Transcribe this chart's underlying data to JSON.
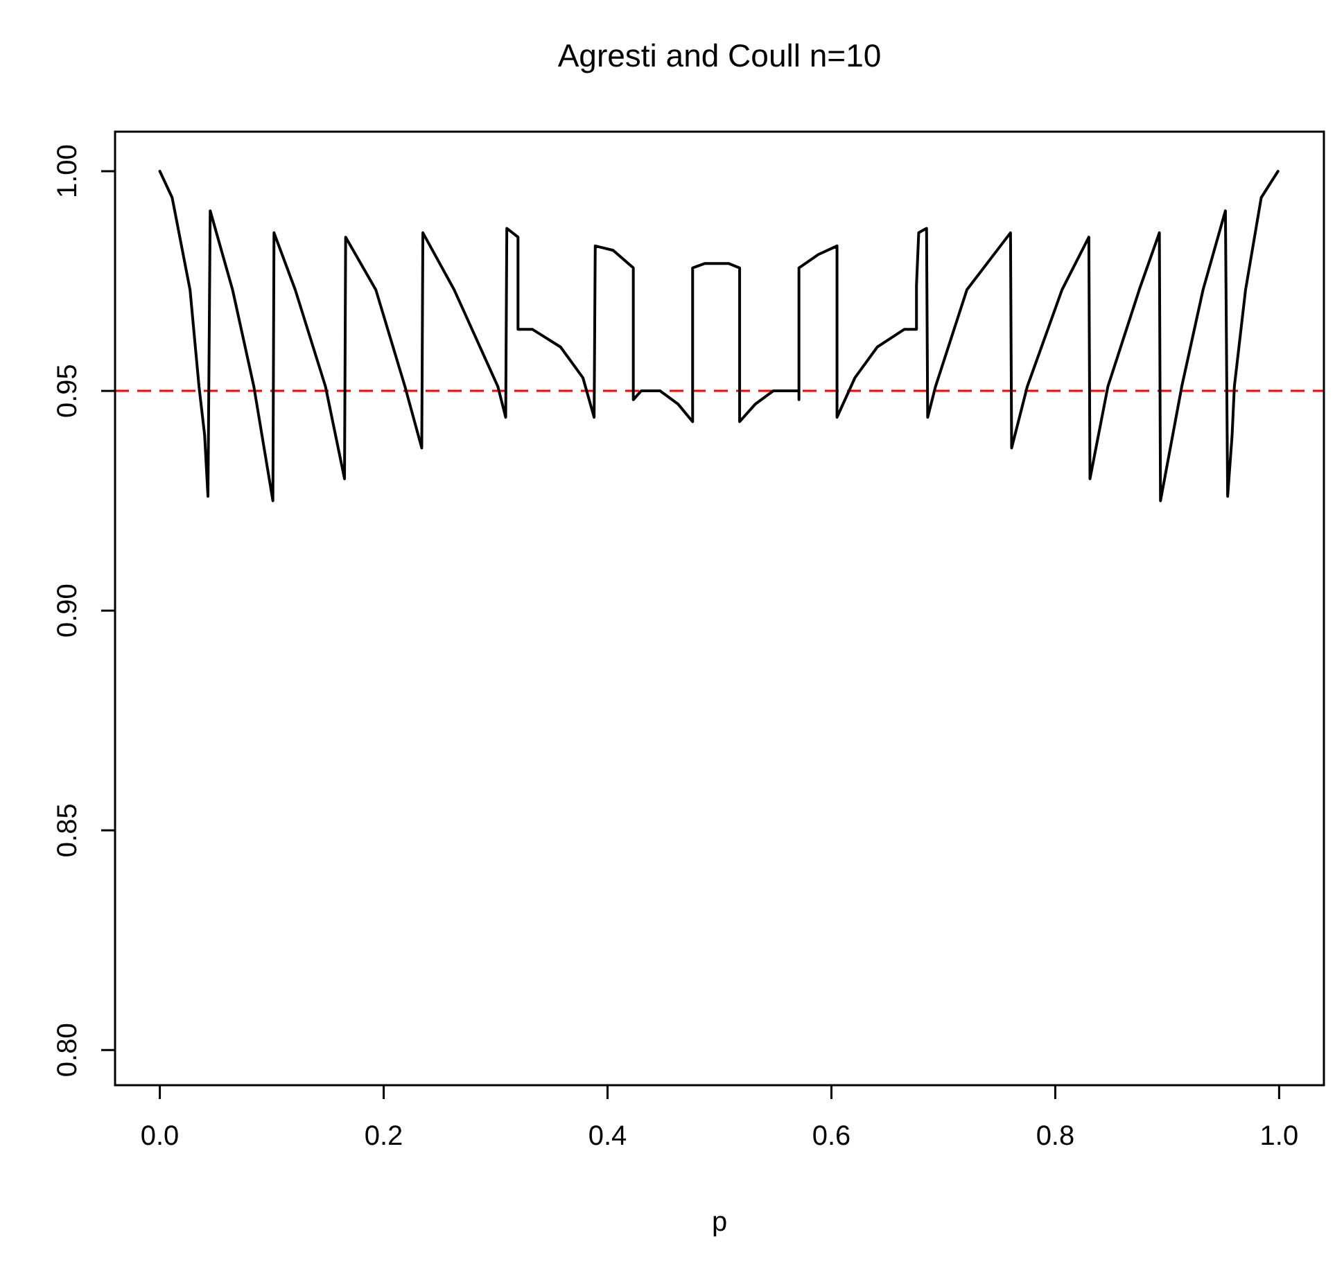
{
  "chart_data": {
    "type": "line",
    "title": "Agresti and Coull n=10",
    "xlabel": "p",
    "xlim": [
      -0.04,
      1.04
    ],
    "ylim": [
      0.792,
      1.009
    ],
    "xticks": [
      {
        "value": 0,
        "label": "0.0"
      },
      0.2,
      0.4,
      0.6,
      0.8,
      {
        "value": 1,
        "label": "1.0"
      }
    ],
    "yticks": [
      {
        "value": 0.8,
        "label": "0.80"
      },
      0.85,
      {
        "value": 0.9,
        "label": "0.90"
      },
      0.95,
      {
        "value": 1,
        "label": "1.00"
      }
    ],
    "marker": "none",
    "line_style": "solid",
    "ref_lines": [
      {
        "axis": "y",
        "value": 0.95,
        "color": "#ff0000",
        "line_style": "dashed"
      }
    ],
    "series": [
      {
        "color": "#000000",
        "x": [
          0,
          0.011,
          0.027,
          0.035,
          0.04,
          0.043,
          0.045,
          0.065,
          0.084,
          0.101,
          0.102,
          0.121,
          0.148,
          0.165,
          0.166,
          0.193,
          0.219,
          0.234,
          0.235,
          0.263,
          0.302,
          0.309,
          0.31,
          0.32,
          0.32,
          0.333,
          0.358,
          0.378,
          0.388,
          0.389,
          0.405,
          0.423,
          0.423,
          0.43,
          0.447,
          0.463,
          0.476,
          0.476,
          0.487,
          0.508,
          0.518,
          0.518,
          0.532,
          0.548,
          0.571,
          0.571,
          0.571,
          0.588,
          0.605,
          0.605,
          0.621,
          0.641,
          0.665,
          0.676,
          0.676,
          0.678,
          0.685,
          0.686,
          0.693,
          0.721,
          0.76,
          0.761,
          0.775,
          0.806,
          0.83,
          0.831,
          0.847,
          0.875,
          0.893,
          0.894,
          0.913,
          0.932,
          0.952,
          0.954,
          0.958,
          0.96,
          0.97,
          0.984,
          0.999
        ],
        "values": [
          1.0,
          0.994,
          0.973,
          0.951,
          0.94,
          0.926,
          0.991,
          0.973,
          0.951,
          0.925,
          0.986,
          0.973,
          0.951,
          0.93,
          0.985,
          0.973,
          0.951,
          0.937,
          0.986,
          0.973,
          0.951,
          0.944,
          0.987,
          0.985,
          0.964,
          0.964,
          0.96,
          0.953,
          0.944,
          0.983,
          0.982,
          0.978,
          0.948,
          0.95,
          0.95,
          0.947,
          0.943,
          0.978,
          0.979,
          0.979,
          0.978,
          0.943,
          0.947,
          0.95,
          0.95,
          0.948,
          0.978,
          0.981,
          0.983,
          0.944,
          0.953,
          0.96,
          0.964,
          0.964,
          0.974,
          0.986,
          0.987,
          0.944,
          0.951,
          0.973,
          0.986,
          0.937,
          0.951,
          0.973,
          0.985,
          0.93,
          0.951,
          0.973,
          0.986,
          0.925,
          0.951,
          0.973,
          0.991,
          0.926,
          0.94,
          0.951,
          0.973,
          0.994,
          1.0
        ]
      }
    ]
  }
}
